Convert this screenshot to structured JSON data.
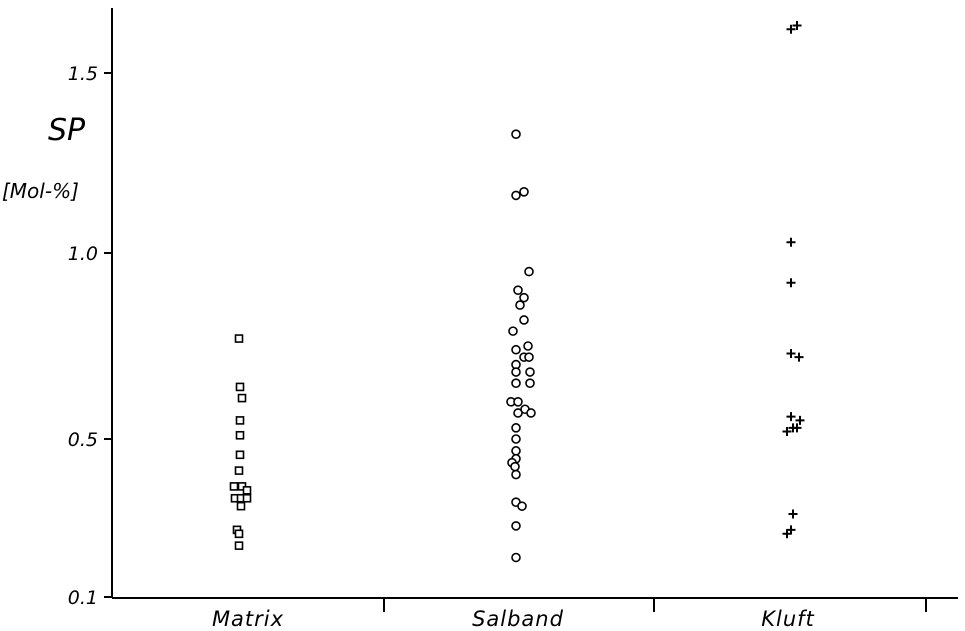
{
  "chart_data": {
    "type": "scatter",
    "ylabel": "SP",
    "yunit": "[Mol-%]",
    "ylim": [
      0.1,
      1.7
    ],
    "yticks": [
      {
        "value": 0.1,
        "label": "0.1"
      },
      {
        "value": 0.5,
        "label": "0.5"
      },
      {
        "value": 1.0,
        "label": "1.0"
      },
      {
        "value": 1.5,
        "label": "1.5"
      }
    ],
    "categories": [
      "Matrix",
      "Salband",
      "Kluft"
    ],
    "grid": false,
    "series": [
      {
        "category": "Matrix",
        "marker": "square",
        "points": [
          {
            "dx": 0,
            "y": 0.77
          },
          {
            "dx": 1,
            "y": 0.64
          },
          {
            "dx": 3,
            "y": 0.61
          },
          {
            "dx": 1,
            "y": 0.55
          },
          {
            "dx": 1,
            "y": 0.51
          },
          {
            "dx": 1,
            "y": 0.46
          },
          {
            "dx": 0,
            "y": 0.42
          },
          {
            "dx": -5,
            "y": 0.38
          },
          {
            "dx": 3,
            "y": 0.38
          },
          {
            "dx": 8,
            "y": 0.37
          },
          {
            "dx": -4,
            "y": 0.35
          },
          {
            "dx": 2,
            "y": 0.35
          },
          {
            "dx": 8,
            "y": 0.35
          },
          {
            "dx": 2,
            "y": 0.33
          },
          {
            "dx": -2,
            "y": 0.27
          },
          {
            "dx": 0,
            "y": 0.26
          },
          {
            "dx": 0,
            "y": 0.23
          }
        ]
      },
      {
        "category": "Salband",
        "marker": "circle",
        "points": [
          {
            "dx": 0,
            "y": 1.33
          },
          {
            "dx": 0,
            "y": 1.16
          },
          {
            "dx": 8,
            "y": 1.17
          },
          {
            "dx": 13,
            "y": 0.95
          },
          {
            "dx": 2,
            "y": 0.9
          },
          {
            "dx": 8,
            "y": 0.88
          },
          {
            "dx": 4,
            "y": 0.86
          },
          {
            "dx": 8,
            "y": 0.82
          },
          {
            "dx": -3,
            "y": 0.79
          },
          {
            "dx": 0,
            "y": 0.74
          },
          {
            "dx": 12,
            "y": 0.75
          },
          {
            "dx": 8,
            "y": 0.72
          },
          {
            "dx": 13,
            "y": 0.72
          },
          {
            "dx": 0,
            "y": 0.7
          },
          {
            "dx": 0,
            "y": 0.68
          },
          {
            "dx": 14,
            "y": 0.68
          },
          {
            "dx": 0,
            "y": 0.65
          },
          {
            "dx": 14,
            "y": 0.65
          },
          {
            "dx": -5,
            "y": 0.6
          },
          {
            "dx": 2,
            "y": 0.6
          },
          {
            "dx": 9,
            "y": 0.58
          },
          {
            "dx": 2,
            "y": 0.57
          },
          {
            "dx": 15,
            "y": 0.57
          },
          {
            "dx": 0,
            "y": 0.53
          },
          {
            "dx": 0,
            "y": 0.5
          },
          {
            "dx": 0,
            "y": 0.47
          },
          {
            "dx": 0,
            "y": 0.45
          },
          {
            "dx": -4,
            "y": 0.44
          },
          {
            "dx": -1,
            "y": 0.43
          },
          {
            "dx": 0,
            "y": 0.41
          },
          {
            "dx": 0,
            "y": 0.34
          },
          {
            "dx": 6,
            "y": 0.33
          },
          {
            "dx": 0,
            "y": 0.28
          },
          {
            "dx": 0,
            "y": 0.2
          }
        ]
      },
      {
        "category": "Kluft",
        "marker": "plus",
        "points": [
          {
            "dx": 0,
            "y": 1.62
          },
          {
            "dx": 6,
            "y": 1.63
          },
          {
            "dx": 0,
            "y": 1.03
          },
          {
            "dx": 0,
            "y": 0.92
          },
          {
            "dx": 0,
            "y": 0.73
          },
          {
            "dx": 8,
            "y": 0.72
          },
          {
            "dx": 0,
            "y": 0.56
          },
          {
            "dx": 9,
            "y": 0.55
          },
          {
            "dx": 6,
            "y": 0.53
          },
          {
            "dx": 2,
            "y": 0.53
          },
          {
            "dx": -4,
            "y": 0.52
          },
          {
            "dx": 2,
            "y": 0.31
          },
          {
            "dx": 0,
            "y": 0.27
          },
          {
            "dx": -4,
            "y": 0.26
          }
        ]
      }
    ]
  }
}
